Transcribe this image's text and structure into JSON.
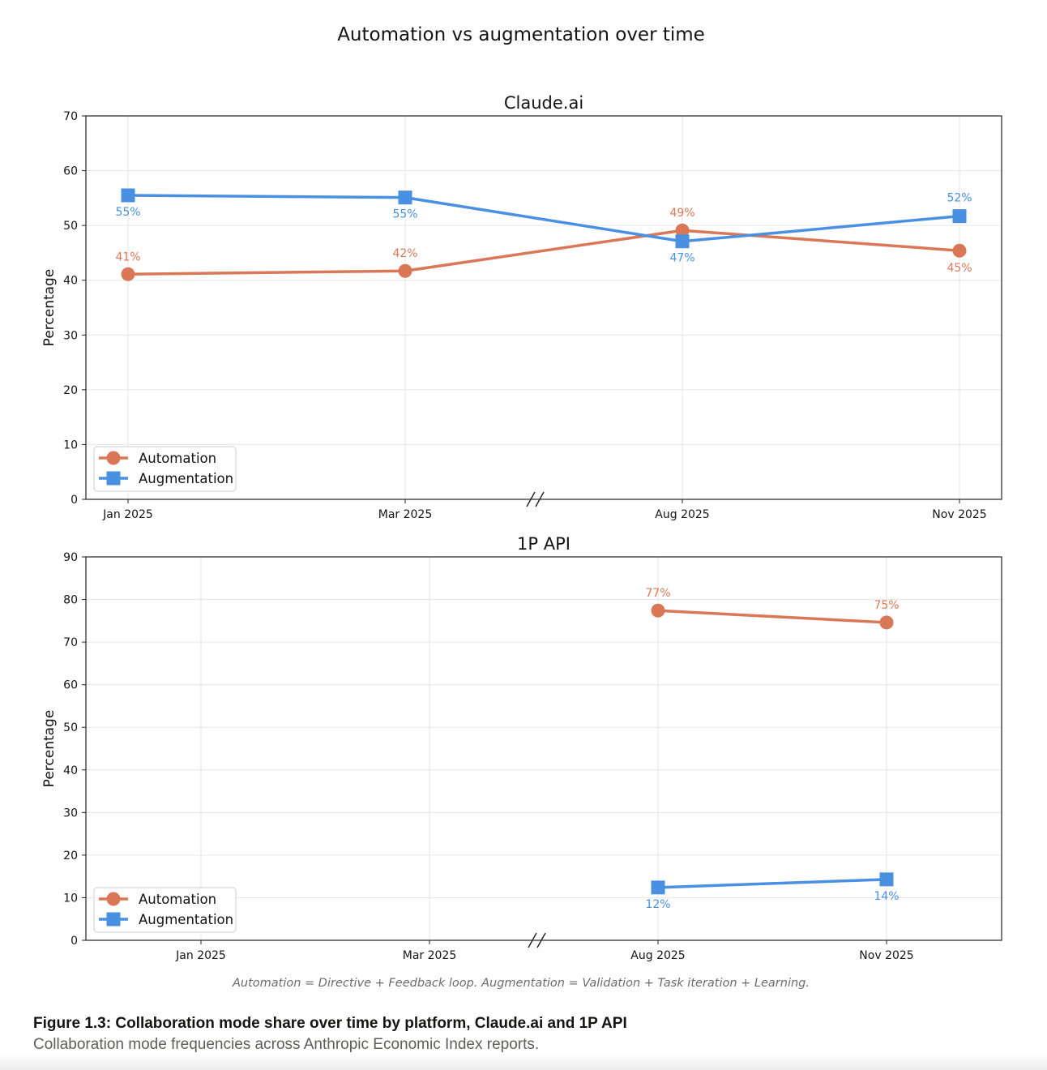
{
  "suptitle": "Automation vs augmentation over time",
  "colors": {
    "automation": "#D97757",
    "augmentation": "#4A90E2",
    "grid": "#e6e6e6",
    "axis": "#222222"
  },
  "chart_data": [
    {
      "type": "line",
      "title": "Claude.ai",
      "xlabel": "",
      "ylabel": "Percentage",
      "ylim": [
        0,
        70
      ],
      "yticks": [
        0,
        10,
        20,
        30,
        40,
        50,
        60,
        70
      ],
      "categories": [
        "Jan 2025",
        "Mar 2025",
        "Aug 2025",
        "Nov 2025"
      ],
      "axis_break_between": [
        1,
        2
      ],
      "grid": true,
      "legend_position": "lower-left",
      "series": [
        {
          "name": "Automation",
          "marker": "circle",
          "points": [
            {
              "category": "Jan 2025",
              "value": 41.1,
              "label": "41%"
            },
            {
              "category": "Mar 2025",
              "value": 41.7,
              "label": "42%"
            },
            {
              "category": "Aug 2025",
              "value": 49.1,
              "label": "49%"
            },
            {
              "category": "Nov 2025",
              "value": 45.4,
              "label": "45%"
            }
          ]
        },
        {
          "name": "Augmentation",
          "marker": "square",
          "points": [
            {
              "category": "Jan 2025",
              "value": 55.5,
              "label": "55%"
            },
            {
              "category": "Mar 2025",
              "value": 55.1,
              "label": "55%"
            },
            {
              "category": "Aug 2025",
              "value": 47.1,
              "label": "47%"
            },
            {
              "category": "Nov 2025",
              "value": 51.7,
              "label": "52%"
            }
          ]
        }
      ]
    },
    {
      "type": "line",
      "title": "1P API",
      "xlabel": "",
      "ylabel": "Percentage",
      "ylim": [
        0,
        90
      ],
      "yticks": [
        0,
        10,
        20,
        30,
        40,
        50,
        60,
        70,
        80,
        90
      ],
      "categories": [
        "Jan 2025",
        "Mar 2025",
        "Aug 2025",
        "Nov 2025"
      ],
      "axis_break_between": [
        1,
        2
      ],
      "grid": true,
      "legend_position": "lower-left",
      "series": [
        {
          "name": "Automation",
          "marker": "circle",
          "points": [
            {
              "category": "Aug 2025",
              "value": 77.4,
              "label": "77%"
            },
            {
              "category": "Nov 2025",
              "value": 74.6,
              "label": "75%"
            }
          ]
        },
        {
          "name": "Augmentation",
          "marker": "square",
          "points": [
            {
              "category": "Aug 2025",
              "value": 12.4,
              "label": "12%"
            },
            {
              "category": "Nov 2025",
              "value": 14.3,
              "label": "14%"
            }
          ]
        }
      ]
    }
  ],
  "footnote": "Automation = Directive + Feedback loop. Augmentation = Validation + Task iteration + Learning.",
  "caption": {
    "title": "Figure 1.3: Collaboration mode share over time by platform, Claude.ai and 1P API",
    "subtitle": "Collaboration mode frequencies across Anthropic Economic Index reports."
  }
}
